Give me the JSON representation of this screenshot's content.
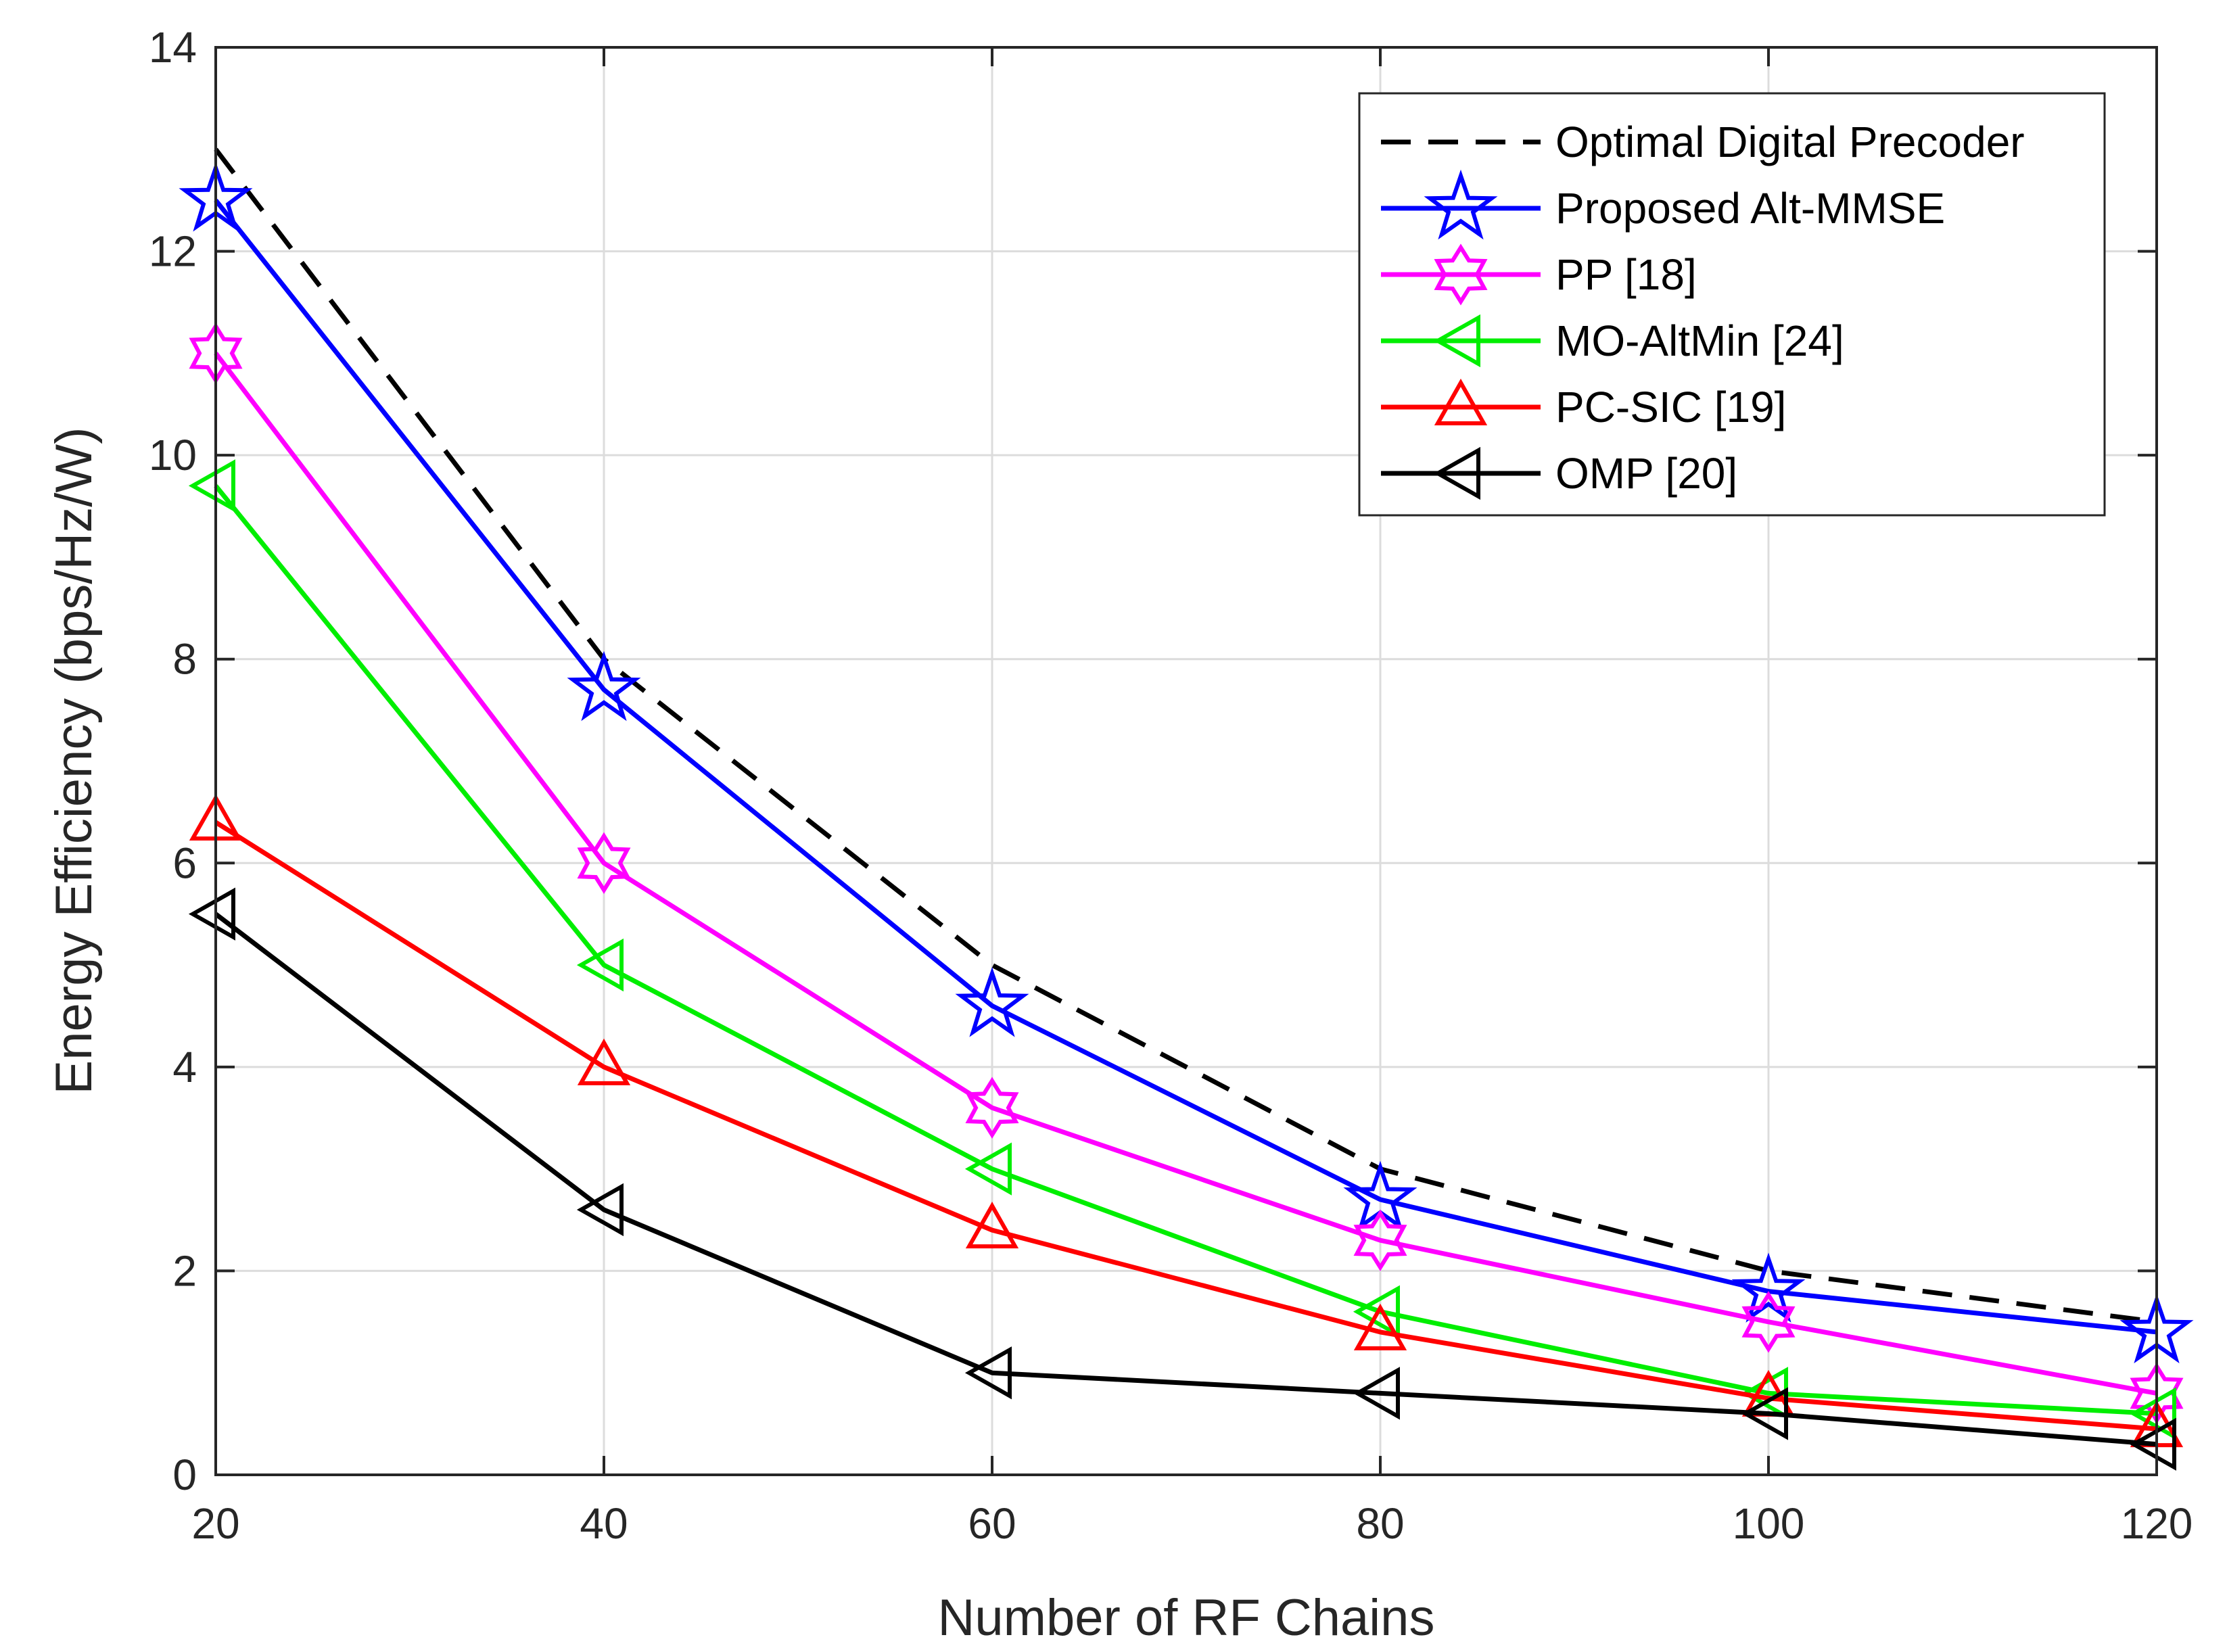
{
  "chart_data": {
    "type": "line",
    "title": "",
    "xlabel": "Number of RF Chains",
    "ylabel": "Energy Efficiency (bps/Hz/W)",
    "xlim": [
      20,
      120
    ],
    "ylim": [
      0,
      14
    ],
    "x": [
      20,
      40,
      60,
      80,
      100,
      120
    ],
    "xticks": [
      "20",
      "40",
      "60",
      "80",
      "100",
      "120"
    ],
    "yticks": [
      "0",
      "2",
      "4",
      "6",
      "8",
      "10",
      "12",
      "14"
    ],
    "grid": true,
    "legend_position": "top-right",
    "series": [
      {
        "name": "Optimal Digital Precoder",
        "color": "#000000",
        "dash": "dashed",
        "marker": "none",
        "values": [
          13.0,
          8.0,
          5.0,
          3.0,
          2.0,
          1.5
        ]
      },
      {
        "name": "Proposed Alt-MMSE",
        "color": "#0000ff",
        "dash": "solid",
        "marker": "star5",
        "values": [
          12.5,
          7.7,
          4.6,
          2.7,
          1.8,
          1.4
        ]
      },
      {
        "name": "PP [18]",
        "color": "#ff00ff",
        "dash": "solid",
        "marker": "hexagram",
        "values": [
          11.0,
          6.0,
          3.6,
          2.3,
          1.5,
          0.8
        ]
      },
      {
        "name": "MO-AltMin [24]",
        "color": "#00ee00",
        "dash": "solid",
        "marker": "triangle-left",
        "values": [
          9.7,
          5.0,
          3.0,
          1.6,
          0.8,
          0.6
        ]
      },
      {
        "name": "PC-SIC [19]",
        "color": "#ff0000",
        "dash": "solid",
        "marker": "triangle-up",
        "values": [
          6.4,
          4.0,
          2.4,
          1.4,
          0.75,
          0.45
        ]
      },
      {
        "name": "OMP [20]",
        "color": "#000000",
        "dash": "solid",
        "marker": "triangle-left",
        "values": [
          5.5,
          2.6,
          1.0,
          0.8,
          0.6,
          0.3
        ]
      }
    ]
  }
}
